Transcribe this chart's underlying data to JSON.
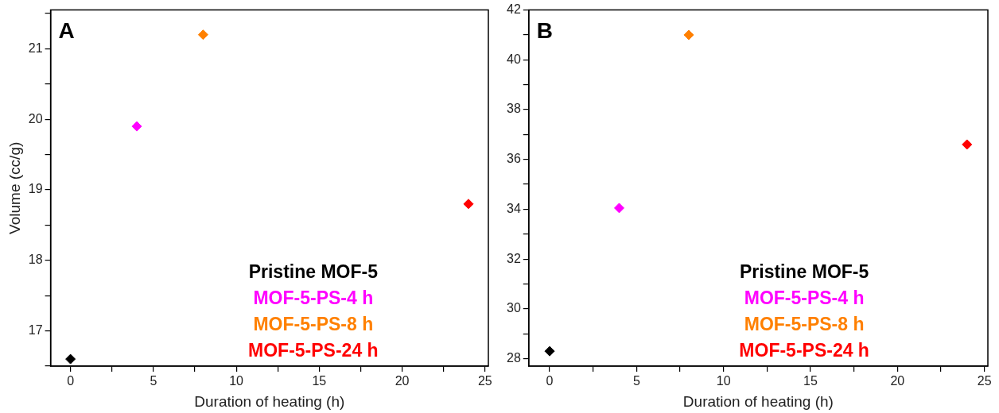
{
  "chart_data": [
    {
      "type": "scatter",
      "title": "A",
      "xlabel": "Duration of heating (h)",
      "ylabel": "Volume (cc/g)",
      "xlim": [
        -1.2,
        25.2
      ],
      "xticks": [
        0,
        {
          "value": 2.5,
          "label": null
        },
        5,
        {
          "value": 7.5,
          "label": null
        },
        10,
        {
          "value": 12.5,
          "label": null
        },
        15,
        {
          "value": 17.5,
          "label": null
        },
        20,
        {
          "value": 22.5,
          "label": null
        },
        25
      ],
      "ylim": [
        16.5,
        21.55
      ],
      "yticks": [
        {
          "value": 16.5,
          "label": null
        },
        17,
        {
          "value": 17.5,
          "label": null
        },
        18,
        {
          "value": 18.5,
          "label": null
        },
        19,
        {
          "value": 19.5,
          "label": null
        },
        20,
        {
          "value": 20.5,
          "label": null
        },
        21,
        {
          "value": 21.5,
          "label": null
        }
      ],
      "marker": "diamond",
      "legend": "bottom right",
      "grid": false,
      "series": [
        {
          "name": "Pristine MOF-5",
          "color": "#000000",
          "x": [
            0
          ],
          "values": [
            16.6
          ]
        },
        {
          "name": "MOF-5-PS-4 h",
          "color": "#ff00ff",
          "x": [
            4
          ],
          "values": [
            19.9
          ]
        },
        {
          "name": "MOF-5-PS-8 h",
          "color": "#ff8000",
          "x": [
            8
          ],
          "values": [
            21.2
          ]
        },
        {
          "name": "MOF-5-PS-24 h",
          "color": "#ff0000",
          "x": [
            24
          ],
          "values": [
            18.8
          ]
        }
      ]
    },
    {
      "type": "scatter",
      "title": "B",
      "xlabel": "Duration of heating (h)",
      "xlim": [
        -1.2,
        25.2
      ],
      "xticks": [
        0,
        {
          "value": 2.5,
          "label": null
        },
        5,
        {
          "value": 7.5,
          "label": null
        },
        10,
        {
          "value": 12.5,
          "label": null
        },
        15,
        {
          "value": 17.5,
          "label": null
        },
        20,
        {
          "value": 22.5,
          "label": null
        },
        25
      ],
      "ylim": [
        27.7,
        42
      ],
      "yticks": [
        28,
        {
          "value": 29,
          "label": null
        },
        30,
        {
          "value": 31,
          "label": null
        },
        32,
        {
          "value": 33,
          "label": null
        },
        34,
        {
          "value": 35,
          "label": null
        },
        36,
        {
          "value": 37,
          "label": null
        },
        38,
        {
          "value": 39,
          "label": null
        },
        40,
        {
          "value": 41,
          "label": null
        },
        42
      ],
      "marker": "diamond",
      "legend": "bottom right",
      "grid": false,
      "series": [
        {
          "name": "Pristine MOF-5",
          "color": "#000000",
          "x": [
            0
          ],
          "values": [
            28.3
          ]
        },
        {
          "name": "MOF-5-PS-4 h",
          "color": "#ff00ff",
          "x": [
            4
          ],
          "values": [
            34.05
          ]
        },
        {
          "name": "MOF-5-PS-8 h",
          "color": "#ff8000",
          "x": [
            8
          ],
          "values": [
            41.0
          ]
        },
        {
          "name": "MOF-5-PS-24 h",
          "color": "#ff0000",
          "x": [
            24
          ],
          "values": [
            36.6
          ]
        }
      ]
    }
  ]
}
